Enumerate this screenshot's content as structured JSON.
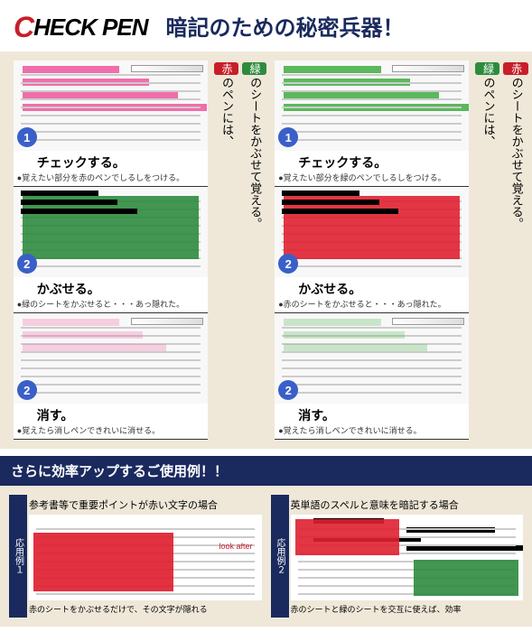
{
  "header": {
    "logo": "CHECK PEN",
    "tagline": "暗記のための秘密兵器！",
    "logo_color": "#000000",
    "logo_accent": "#c81e2a",
    "logo_fontsize": 26,
    "tagline_color": "#1a2a5e",
    "tagline_fontsize": 24
  },
  "colors": {
    "bg_beige": "#efe8d8",
    "navy": "#1a2a5e",
    "green": "#2e8b3e",
    "red": "#c81e2a",
    "pink_hl": "#f06eaa",
    "green_hl": "#5cb85c",
    "step_blue": "#3a5fc8",
    "green_sheet": "#2e8b3e",
    "red_sheet": "#e02030"
  },
  "panels": [
    {
      "side_labels": [
        {
          "pill": "緑",
          "pill_color": "#2e8b3e",
          "text": "のシートをかぶせて覚える。"
        },
        {
          "pill": "赤",
          "pill_color": "#c81e2a",
          "text": "のペンには、"
        }
      ],
      "hl_color": "#f06eaa",
      "sheet_color": "#2e8b3e",
      "steps": [
        {
          "num": "1",
          "num_bg": "#3a5fc8",
          "title": "チェックする。",
          "desc": "●覚えたい部分を赤のペンでしるしをつける。"
        },
        {
          "num": "2",
          "num_bg": "#3a5fc8",
          "title": "かぶせる。",
          "desc": "●緑のシートをかぶせると・・・あっ隠れた。"
        },
        {
          "num": "2",
          "num_bg": "#3a5fc8",
          "title": "消す。",
          "desc": "●覚えたら消しペンできれいに消せる。"
        }
      ]
    },
    {
      "side_labels": [
        {
          "pill": "赤",
          "pill_color": "#c81e2a",
          "text": "のシートをかぶせて覚える。"
        },
        {
          "pill": "緑",
          "pill_color": "#2e8b3e",
          "text": "のペンには、"
        }
      ],
      "hl_color": "#5cb85c",
      "sheet_color": "#e02030",
      "steps": [
        {
          "num": "1",
          "num_bg": "#3a5fc8",
          "title": "チェックする。",
          "desc": "●覚えたい部分を緑のペンでしるしをつける。"
        },
        {
          "num": "2",
          "num_bg": "#3a5fc8",
          "title": "かぶせる。",
          "desc": "●赤のシートをかぶせると・・・あっ隠れた。"
        },
        {
          "num": "2",
          "num_bg": "#3a5fc8",
          "title": "消す。",
          "desc": "●覚えたら消しペンできれいに消せる。"
        }
      ]
    }
  ],
  "subheader": "さらに効率アップするご使用例！！",
  "bottom": [
    {
      "tab": "応用例１",
      "title": "参考書等で重要ポイントが赤い文字の場合",
      "caption": "赤のシートをかぶせるだけで、その文字が隠れる",
      "sheet_color": "#e02030"
    },
    {
      "tab": "応用例２",
      "title": "英単語のスペルと意味を暗記する場合",
      "caption": "赤のシートと緑のシートを交互に使えば、効率",
      "sheet_colors": [
        "#e02030",
        "#2e8b3e"
      ]
    }
  ]
}
